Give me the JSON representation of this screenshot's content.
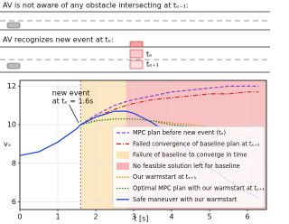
{
  "scenario": {
    "line1": "AV is not aware of any obstacle intersecting at tₑ₋₁:",
    "line2": "AV recognizes new event at tₑ:",
    "obstacle_labels": [
      "tₑ",
      "tₑ₊₁"
    ]
  },
  "chart_data": {
    "type": "line",
    "x": [
      0,
      0.5,
      1,
      1.5,
      1.6,
      2,
      2.5,
      2.8,
      3,
      3.5,
      4,
      4.5,
      5,
      5.5,
      6,
      6.3
    ],
    "xlim": [
      0,
      6.5
    ],
    "xticks": [
      0,
      1,
      2,
      3,
      4,
      5,
      6
    ],
    "ylim": [
      5.6,
      12.3
    ],
    "yticks": [
      6,
      8,
      10,
      12
    ],
    "xlabel": "t [s]",
    "ylabel": "vₓ",
    "annotation": [
      "new event",
      "at tₑ = 1.6s"
    ],
    "event_x": 1.6,
    "regions": [
      {
        "name": "Failure of baseline to converge in time",
        "color": "#fbe3b4",
        "x": [
          1.6,
          2.8
        ]
      },
      {
        "name": "No feasible solution left for baseline",
        "color": "#f7b3b3",
        "x": [
          2.8,
          6.5
        ]
      }
    ],
    "series": [
      {
        "name": "MPC plan before new event (tₑ)",
        "color": "#8a3fd1",
        "dash": "4,2",
        "values": [
          null,
          null,
          null,
          null,
          10,
          10.5,
          11,
          11.2,
          11.3,
          11.5,
          11.7,
          11.8,
          11.9,
          12,
          12,
          12
        ]
      },
      {
        "name": "Failed convergence of baseline plan at tₑ₊₁",
        "color": "#d62728",
        "dash": "5,2,1,2",
        "values": [
          null,
          null,
          null,
          null,
          10,
          10.4,
          10.8,
          11,
          11.1,
          11.3,
          11.4,
          11.5,
          11.6,
          11.6,
          11.7,
          11.7
        ]
      },
      {
        "name": "Our warmstart at tₑ₊₁",
        "color": "#e8820c",
        "dash": "1.5,1.5",
        "values": [
          null,
          null,
          null,
          null,
          10,
          10.2,
          10.3,
          10.3,
          10.3,
          10.2,
          10.1,
          10,
          9.9,
          9.8,
          9.6,
          9.5
        ]
      },
      {
        "name": "Optimal MPC plan with our warmstart at tₑ₊₁",
        "color": "#2a8a2a",
        "dash": "1.5,1.5",
        "values": [
          null,
          null,
          null,
          null,
          10,
          10.2,
          10.3,
          10.3,
          10.3,
          10.2,
          10,
          9.9,
          9.7,
          9.6,
          9.4,
          9.3
        ]
      },
      {
        "name": "Safe maneuver with our warmstart",
        "color": "#1f3fe0",
        "dash": "",
        "values": [
          8.4,
          8.6,
          9.1,
          9.8,
          10,
          10.4,
          10.7,
          10.7,
          10.6,
          10.1,
          9.4,
          8.6,
          7.8,
          7.1,
          6.5,
          6.2
        ]
      }
    ]
  }
}
